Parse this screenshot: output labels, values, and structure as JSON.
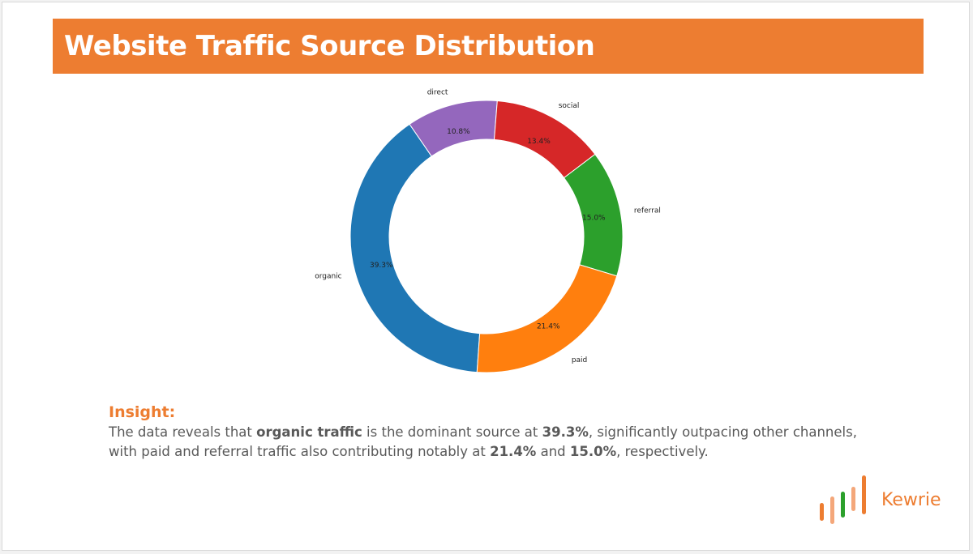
{
  "title": "Website Traffic Source Distribution",
  "chart_data": {
    "type": "pie",
    "donut": true,
    "categories": [
      "organic",
      "paid",
      "referral",
      "social",
      "direct"
    ],
    "values": [
      39.3,
      21.4,
      15.0,
      13.4,
      10.8
    ],
    "value_labels": [
      "39.3%",
      "21.4%",
      "15.0%",
      "13.4%",
      "10.8%"
    ],
    "colors": [
      "#1f77b4",
      "#ff7f0e",
      "#2ca02c",
      "#d62728",
      "#9467bd"
    ]
  },
  "insight": {
    "heading": "Insight:",
    "p1": "The data reveals that ",
    "b1": "organic traffic",
    "p2": " is the dominant source at ",
    "b2": "39.3%",
    "p3": ", significantly outpacing other channels, with paid and referral traffic also contributing notably at ",
    "b3": "21.4%",
    "p4": " and ",
    "b4": "15.0%",
    "p5": ", respectively."
  },
  "logo": {
    "text": "Kewrie",
    "colors": [
      "#ed7d31",
      "#2ca02c"
    ]
  }
}
